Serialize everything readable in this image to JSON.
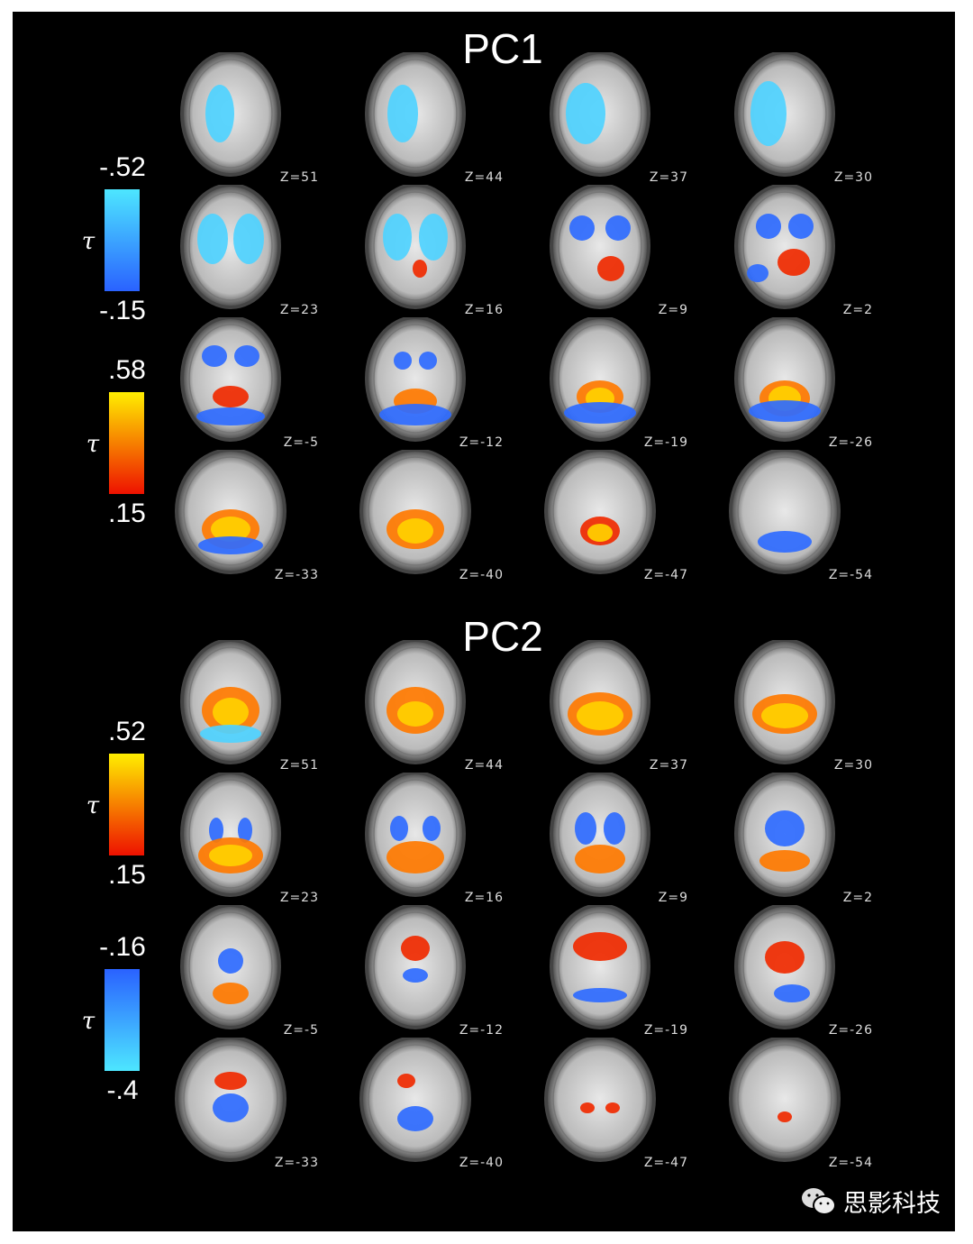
{
  "panels": [
    {
      "title": "PC1",
      "colorbars": [
        {
          "symbol": "τ",
          "top_label": "-.52",
          "bottom_label": "-.15",
          "colors": [
            "#4de6ff",
            "#2a62ff"
          ]
        },
        {
          "symbol": "τ",
          "top_label": ".58",
          "bottom_label": ".15",
          "colors": [
            "#ffee00",
            "#ee1100"
          ]
        }
      ],
      "slices": [
        "Z=51",
        "Z=44",
        "Z=37",
        "Z=30",
        "Z=23",
        "Z=16",
        "Z=9",
        "Z=2",
        "Z=-5",
        "Z=-12",
        "Z=-19",
        "Z=-26",
        "Z=-33",
        "Z=-40",
        "Z=-47",
        "Z=-54"
      ]
    },
    {
      "title": "PC2",
      "colorbars": [
        {
          "symbol": "τ",
          "top_label": ".52",
          "bottom_label": ".15",
          "colors": [
            "#ffee00",
            "#ee1100"
          ]
        },
        {
          "symbol": "τ",
          "top_label": "-.16",
          "bottom_label": "-.4",
          "colors": [
            "#2a62ff",
            "#4de6ff"
          ]
        }
      ],
      "slices": [
        "Z=51",
        "Z=44",
        "Z=37",
        "Z=30",
        "Z=23",
        "Z=16",
        "Z=9",
        "Z=2",
        "Z=-5",
        "Z=-12",
        "Z=-19",
        "Z=-26",
        "Z=-33",
        "Z=-40",
        "Z=-47",
        "Z=-54"
      ]
    }
  ],
  "watermark": {
    "icon": "wechat-icon",
    "text": "思影科技"
  }
}
